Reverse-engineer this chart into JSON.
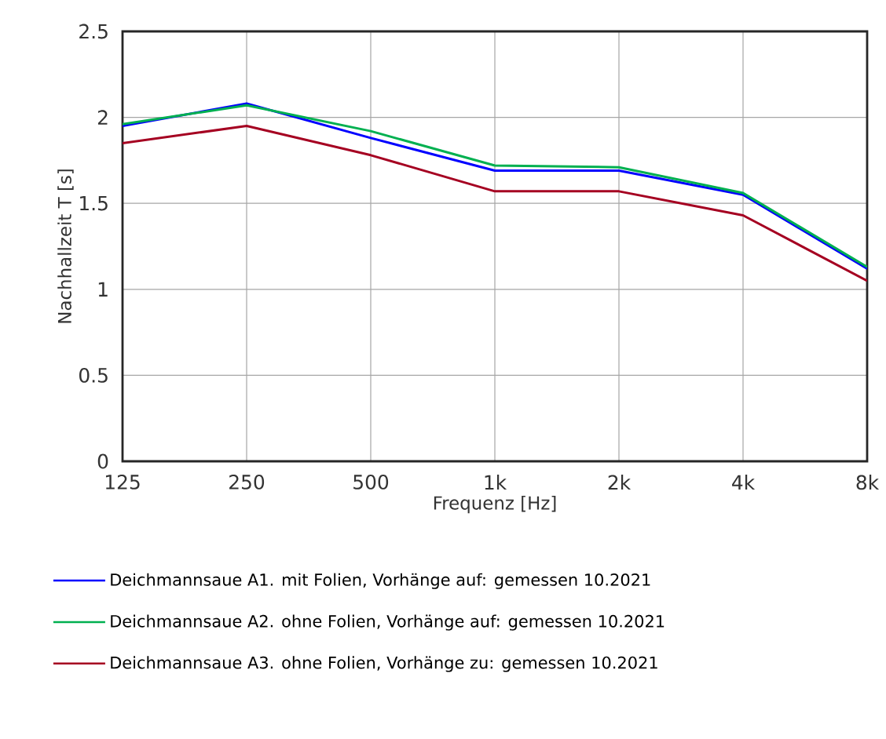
{
  "chart_data": {
    "type": "line",
    "xlabel": "Frequenz  [Hz]",
    "ylabel": "Nachhallzeit T [s]",
    "categories": [
      "125",
      "250",
      "500",
      "1k",
      "2k",
      "4k",
      "8k"
    ],
    "series": [
      {
        "name": "Deichmannsaue A1. mit Folien, Vorhänge auf: gemessen 10.2021",
        "color": "#0000ff",
        "values": [
          1.95,
          2.08,
          1.88,
          1.69,
          1.69,
          1.55,
          1.12
        ]
      },
      {
        "name": "Deichmannsaue A2. ohne Folien, Vorhänge auf: gemessen 10.2021",
        "color": "#00b050",
        "values": [
          1.96,
          2.07,
          1.92,
          1.72,
          1.71,
          1.56,
          1.13
        ]
      },
      {
        "name": "Deichmannsaue A3. ohne Folien, Vorhänge zu: gemessen 10.2021",
        "color": "#a50021",
        "values": [
          1.85,
          1.95,
          1.78,
          1.57,
          1.57,
          1.43,
          1.05
        ]
      }
    ],
    "ylim": [
      0,
      2.5
    ],
    "yticks": [
      0,
      0.5,
      1,
      1.5,
      2,
      2.5
    ],
    "grid": true,
    "legend": "bottom"
  }
}
